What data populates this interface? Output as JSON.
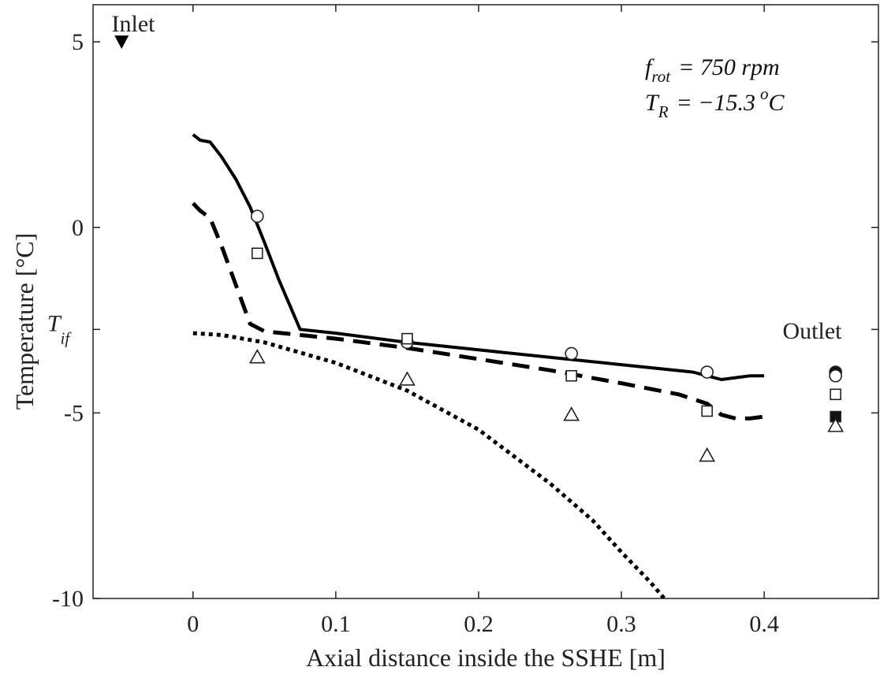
{
  "chart_data": {
    "type": "line",
    "xlabel": "Axial distance inside the SSHE [m]",
    "ylabel": "Temperature [°C]",
    "xlim": [
      -0.07,
      0.48
    ],
    "ylim": [
      -10,
      6
    ],
    "x_ticks": [
      0,
      0.1,
      0.2,
      0.3,
      0.4
    ],
    "x_tick_labels": [
      "0",
      "0.1",
      "0.2",
      "0.3",
      "0.4"
    ],
    "y_ticks": [
      -10,
      -5,
      0,
      5
    ],
    "y_tick_labels": [
      "-10",
      "-5",
      "0",
      "5"
    ],
    "special_y_tick": {
      "value": -2.75,
      "label_main": "T",
      "label_sub": "if"
    },
    "grid": false,
    "annotations": {
      "inlet_label": "Inlet",
      "inlet_marker": {
        "x": -0.05,
        "y": 5
      },
      "outlet_label": "Outlet",
      "frot_symbol": "f",
      "frot_sub": "rot",
      "frot_value": "= 750 rpm",
      "tr_symbol": "T",
      "tr_sub": "R",
      "tr_value": "= −15.3",
      "tr_sup": "o",
      "tr_unit": "C"
    },
    "series": [
      {
        "style": "solid",
        "x": [
          0,
          0.005,
          0.012,
          0.02,
          0.03,
          0.04,
          0.05,
          0.06,
          0.075,
          0.1,
          0.15,
          0.2,
          0.25,
          0.3,
          0.35,
          0.37,
          0.38,
          0.39,
          0.4
        ],
        "y": [
          2.5,
          2.35,
          2.3,
          1.9,
          1.3,
          0.55,
          -0.4,
          -1.4,
          -2.75,
          -2.85,
          -3.1,
          -3.3,
          -3.5,
          -3.7,
          -3.9,
          -4.1,
          -4.05,
          -4.0,
          -4.0
        ]
      },
      {
        "style": "dashed",
        "x": [
          0,
          0.005,
          0.012,
          0.02,
          0.03,
          0.04,
          0.05,
          0.075,
          0.1,
          0.15,
          0.2,
          0.25,
          0.3,
          0.34,
          0.36,
          0.37,
          0.38,
          0.39,
          0.4
        ],
        "y": [
          0.65,
          0.45,
          0.25,
          -0.5,
          -1.55,
          -2.6,
          -2.8,
          -2.9,
          -3.0,
          -3.25,
          -3.55,
          -3.85,
          -4.2,
          -4.5,
          -4.75,
          -5.05,
          -5.15,
          -5.15,
          -5.1
        ]
      },
      {
        "style": "dotted",
        "x": [
          0,
          0.02,
          0.05,
          0.1,
          0.15,
          0.2,
          0.25,
          0.28,
          0.3,
          0.32,
          0.33
        ],
        "y": [
          -2.85,
          -2.9,
          -3.1,
          -3.65,
          -4.4,
          -5.45,
          -6.9,
          -7.9,
          -8.75,
          -9.55,
          -10
        ]
      }
    ],
    "markers": [
      {
        "shape": "circle",
        "filled": false,
        "x": 0.045,
        "y": 0.3
      },
      {
        "shape": "circle",
        "filled": false,
        "x": 0.15,
        "y": -3.1
      },
      {
        "shape": "circle",
        "filled": false,
        "x": 0.265,
        "y": -3.4
      },
      {
        "shape": "circle",
        "filled": false,
        "x": 0.36,
        "y": -3.9
      },
      {
        "shape": "square",
        "filled": false,
        "x": 0.045,
        "y": -0.7
      },
      {
        "shape": "square",
        "filled": false,
        "x": 0.15,
        "y": -3.0
      },
      {
        "shape": "square",
        "filled": false,
        "x": 0.265,
        "y": -4.0
      },
      {
        "shape": "square",
        "filled": false,
        "x": 0.36,
        "y": -4.95
      },
      {
        "shape": "triangle",
        "filled": false,
        "x": 0.045,
        "y": -3.5
      },
      {
        "shape": "triangle",
        "filled": false,
        "x": 0.15,
        "y": -4.1
      },
      {
        "shape": "triangle",
        "filled": false,
        "x": 0.265,
        "y": -5.05
      },
      {
        "shape": "triangle",
        "filled": false,
        "x": 0.36,
        "y": -6.15
      },
      {
        "shape": "circle",
        "filled": true,
        "x": 0.45,
        "y": -3.9
      },
      {
        "shape": "circle",
        "filled": false,
        "x": 0.45,
        "y": -4.0
      },
      {
        "shape": "square",
        "filled": false,
        "x": 0.45,
        "y": -4.5
      },
      {
        "shape": "square",
        "filled": true,
        "x": 0.45,
        "y": -5.1
      },
      {
        "shape": "triangle",
        "filled": false,
        "x": 0.45,
        "y": -5.35
      }
    ]
  }
}
